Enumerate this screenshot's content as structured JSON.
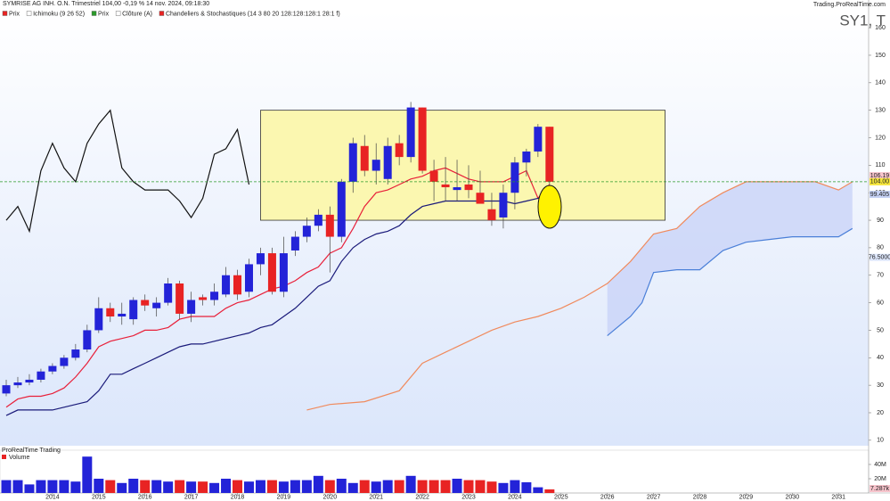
{
  "chart_data": {
    "type": "candlestick",
    "title": "SYMRISE AG INH. O.N. Trimestriel 104,00 -0,19 % 14 nov. 2024, 09:18:30",
    "legend": [
      "Prix",
      "Ichimoku (9 26 52)",
      "Prix",
      "Clôture (A)",
      "Chandeliers & Stochastiques (14 3 80 20 128:128:128:1 28:1 f)"
    ],
    "watermark": "SY1, T",
    "source": "Trading.ProRealTime.com",
    "xlim": [
      2012.865,
      2031.651
    ],
    "xticks": [
      2014,
      2015,
      2016,
      2017,
      2018,
      2019,
      2020,
      2021,
      2022,
      2023,
      2024,
      2025,
      2026,
      2027,
      2028,
      2029,
      2030,
      2031
    ],
    "ylim": [
      8,
      166.2
    ],
    "yticks": [
      10,
      20,
      30,
      40,
      50,
      60,
      70,
      80,
      90,
      100,
      110,
      120,
      130,
      140,
      150,
      160
    ],
    "candles": {
      "up_color": "#2323d8",
      "down_color": "#e82323",
      "x": [
        2013,
        2013.25,
        2013.5,
        2013.75,
        2014,
        2014.25,
        2014.5,
        2014.75,
        2015,
        2015.25,
        2015.5,
        2015.75,
        2016,
        2016.25,
        2016.5,
        2016.75,
        2017,
        2017.25,
        2017.5,
        2017.75,
        2018,
        2018.25,
        2018.5,
        2018.75,
        2019,
        2019.25,
        2019.5,
        2019.75,
        2020,
        2020.25,
        2020.5,
        2020.75,
        2021,
        2021.25,
        2021.5,
        2021.75,
        2022,
        2022.25,
        2022.5,
        2022.75,
        2023,
        2023.25,
        2023.5,
        2023.75,
        2024,
        2024.25,
        2024.5,
        2024.75
      ],
      "open": [
        27,
        30,
        31,
        32,
        35,
        37,
        40,
        43,
        50,
        58,
        55,
        54,
        61,
        58,
        60,
        67,
        56,
        62,
        61,
        63,
        70,
        64,
        74,
        78,
        64,
        79,
        84,
        88,
        92,
        84,
        104,
        117,
        108,
        105,
        118,
        113,
        131,
        108,
        103,
        101,
        103,
        100,
        94,
        91,
        100,
        111,
        115,
        124
      ],
      "high": [
        32,
        33,
        34,
        36,
        38,
        41,
        45,
        52,
        62,
        60,
        60,
        62,
        63,
        62,
        69,
        68,
        64,
        63,
        67,
        73,
        72,
        76,
        80,
        80,
        84,
        86,
        91,
        94,
        95,
        105,
        120,
        121,
        118,
        120,
        121,
        133,
        131,
        112,
        113,
        112,
        110,
        108,
        100,
        103,
        113,
        116,
        125,
        124
      ],
      "low": [
        26,
        29,
        30,
        31,
        34,
        36,
        39,
        42,
        49,
        53,
        52,
        52,
        57,
        55,
        59,
        54,
        53,
        59,
        59,
        62,
        61,
        62,
        70,
        63,
        62,
        77,
        82,
        86,
        71,
        82,
        100,
        106,
        103,
        103,
        110,
        111,
        107,
        97,
        97,
        97,
        98,
        96,
        88,
        87,
        94,
        106,
        113,
        103
      ],
      "close": [
        30,
        31,
        32,
        35,
        37,
        40,
        43,
        50,
        58,
        55,
        56,
        61,
        59,
        60,
        67,
        56,
        61,
        61,
        64,
        70,
        63,
        74,
        78,
        64,
        78,
        84,
        88,
        92,
        84,
        104,
        118,
        108,
        112,
        117,
        113,
        131,
        108,
        104,
        102,
        102,
        101,
        96,
        90,
        100,
        111,
        115,
        124,
        104
      ]
    },
    "lines": [
      {
        "color": "#e8203a",
        "values": [
          22,
          25,
          26,
          26,
          27,
          29,
          33,
          38,
          44,
          46,
          47,
          48,
          50,
          50,
          51,
          54,
          55,
          55,
          55,
          58,
          60,
          61,
          63,
          65,
          66,
          68,
          71,
          73,
          78,
          80,
          87,
          95,
          100,
          101,
          103,
          105,
          106,
          108,
          109,
          107,
          105,
          104,
          104,
          104,
          106,
          108,
          98,
          103
        ]
      },
      {
        "color": "#1a1a7a",
        "values": [
          19,
          21,
          21,
          21,
          21,
          22,
          23,
          24,
          28,
          34,
          34,
          36,
          38,
          40,
          42,
          44,
          45,
          45,
          46,
          47,
          48,
          49,
          51,
          52,
          55,
          58,
          62,
          66,
          68,
          75,
          80,
          83,
          85,
          86,
          88,
          92,
          95,
          96,
          97,
          97,
          97,
          97,
          97,
          97,
          96,
          97,
          98,
          99
        ]
      },
      {
        "color": "#111111",
        "x": [
          2013,
          2013.25,
          2013.5,
          2013.75,
          2014,
          2014.25,
          2014.5,
          2014.75,
          2015,
          2015.25,
          2015.5,
          2015.75,
          2016,
          2016.25,
          2016.5,
          2016.75,
          2017,
          2017.25,
          2017.5,
          2017.75,
          2018,
          2018.25
        ],
        "values": [
          90,
          95,
          86,
          108,
          118,
          109,
          104,
          118,
          125,
          130,
          109,
          104,
          101,
          101,
          101,
          97,
          91,
          98,
          114,
          116,
          123,
          103
        ]
      },
      {
        "color": "#f08a5d",
        "x": [
          2019.5,
          2020,
          2020.75,
          2021.5,
          2022,
          2022.5,
          2023,
          2023.5,
          2024,
          2024.5,
          2025,
          2025.5,
          2026,
          2026.5,
          2027,
          2027.5,
          2028,
          2028.5,
          2029,
          2029.5,
          2030,
          2030.5,
          2031,
          2031.3
        ],
        "values": [
          21,
          23,
          24,
          28,
          38,
          42,
          46,
          50,
          53,
          55,
          58,
          62,
          67,
          75,
          85,
          87,
          95,
          100,
          104,
          104,
          104,
          104,
          101,
          104
        ]
      },
      {
        "color": "#4a7fd8",
        "x": [
          2026,
          2026.5,
          2026.75,
          2027,
          2027.5,
          2028,
          2028.5,
          2029,
          2029.5,
          2030,
          2030.5,
          2031,
          2031.3
        ],
        "values": [
          48,
          55,
          60,
          71,
          72,
          72,
          79,
          82,
          83,
          84,
          84,
          84,
          87
        ]
      }
    ],
    "cloud_color": "#c9d3f7",
    "box": {
      "xlim": [
        2018.5,
        2027.25
      ],
      "ylim": [
        90,
        130
      ],
      "color": "#fbf7b0"
    },
    "price_tags": [
      {
        "value": 106.19,
        "label": "106.19",
        "color": "#f7c4cc"
      },
      {
        "value": 104,
        "label": "104.00",
        "color": "#f6e63a",
        "line_color": "#2a9a2a"
      },
      {
        "value": 99.405,
        "label": "99.405",
        "color": "#c6d2f5"
      },
      {
        "value": 76.5,
        "label": "76.5000",
        "color": "#dde6fb"
      }
    ],
    "volume": {
      "panel_title": "ProRealTime Trading",
      "label": "Volume",
      "values": [
        18,
        18,
        12,
        18,
        18,
        18,
        16,
        51,
        20,
        18,
        14,
        20,
        18,
        18,
        16,
        18,
        16,
        16,
        14,
        20,
        18,
        16,
        18,
        18,
        16,
        18,
        18,
        24,
        18,
        20,
        14,
        18,
        16,
        18,
        18,
        24,
        18,
        18,
        18,
        20,
        18,
        18,
        16,
        14,
        18,
        15,
        8,
        5
      ],
      "ylim": [
        0,
        60
      ],
      "yticks": [
        {
          "value": 20,
          "label": "20M"
        },
        {
          "value": 40,
          "label": "40M"
        }
      ],
      "tag": "7.287k"
    }
  }
}
